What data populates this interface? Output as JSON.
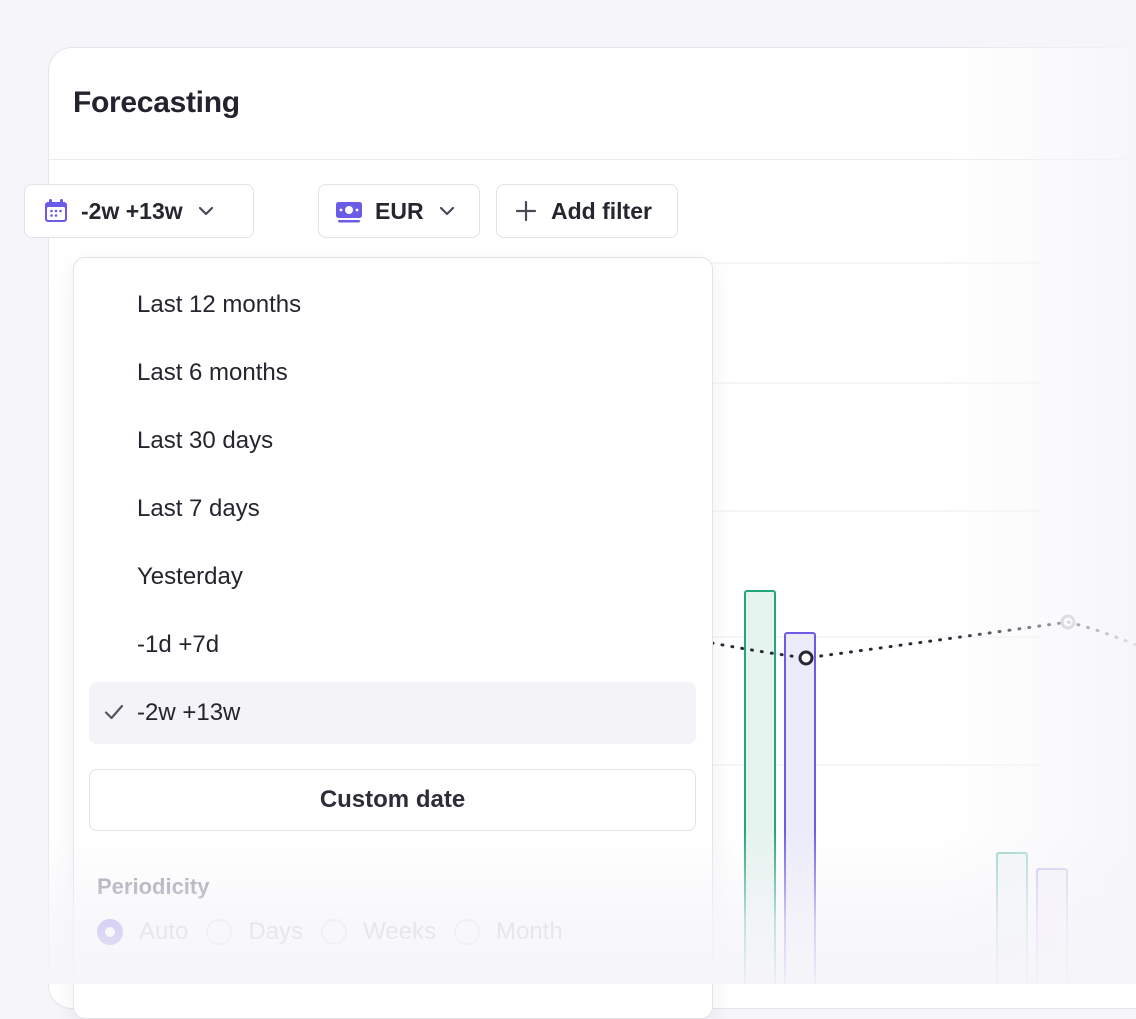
{
  "card": {
    "title": "Forecasting"
  },
  "filters": {
    "date_range": {
      "label": "-2w +13w",
      "icon": "calendar-icon"
    },
    "currency": {
      "label": "EUR",
      "icon": "money-icon"
    },
    "add_filter": {
      "label": "Add filter",
      "icon": "plus-icon"
    }
  },
  "dropdown": {
    "options": [
      {
        "label": "Last 12 months",
        "selected": false
      },
      {
        "label": "Last 6 months",
        "selected": false
      },
      {
        "label": "Last 30 days",
        "selected": false
      },
      {
        "label": "Last 7 days",
        "selected": false
      },
      {
        "label": "Yesterday",
        "selected": false
      },
      {
        "label": "-1d +7d",
        "selected": false
      },
      {
        "label": "-2w +13w",
        "selected": true
      }
    ],
    "custom_date_label": "Custom date",
    "periodicity": {
      "title": "Periodicity",
      "options": [
        {
          "label": "Auto",
          "selected": true
        },
        {
          "label": "Days",
          "selected": false
        },
        {
          "label": "Weeks",
          "selected": false
        },
        {
          "label": "Month",
          "selected": false
        }
      ]
    }
  },
  "colors": {
    "accent": "#6b5ce7",
    "bar_actual": "#22a67a",
    "bar_forecast": "#6b5ce7"
  }
}
